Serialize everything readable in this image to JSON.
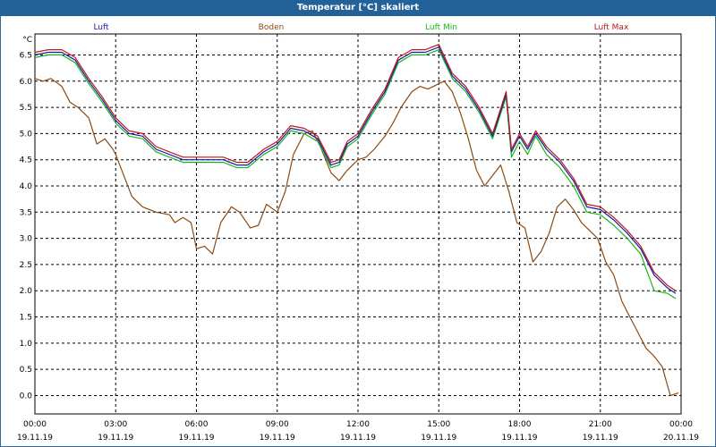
{
  "window": {
    "title": "Temperatur [°C] skaliert"
  },
  "chart_data": {
    "type": "line",
    "title": "Temperatur [°C] skaliert",
    "ylabel": "°C",
    "xlabel": "",
    "ylim": [
      -0.35,
      6.9
    ],
    "xlim": [
      0,
      24
    ],
    "grid": true,
    "yticks": [
      "0.0",
      "0.5",
      "1.0",
      "1.5",
      "2.0",
      "2.5",
      "3.0",
      "3.5",
      "4.0",
      "4.5",
      "5.0",
      "5.5",
      "6.0",
      "6.5"
    ],
    "xticks": [
      {
        "time": "00:00",
        "date": "19.11.19"
      },
      {
        "time": "03:00",
        "date": "19.11.19"
      },
      {
        "time": "06:00",
        "date": "19.11.19"
      },
      {
        "time": "09:00",
        "date": "19.11.19"
      },
      {
        "time": "12:00",
        "date": "19.11.19"
      },
      {
        "time": "15:00",
        "date": "19.11.19"
      },
      {
        "time": "18:00",
        "date": "19.11.19"
      },
      {
        "time": "21:00",
        "date": "19.11.19"
      },
      {
        "time": "00:00",
        "date": "20.11.19"
      }
    ],
    "legend_position": "top",
    "series": [
      {
        "name": "Luft",
        "color": "#1a1aa6",
        "x": [
          0,
          0.5,
          1,
          1.5,
          2,
          2.5,
          3,
          3.5,
          4,
          4.5,
          5,
          5.5,
          6,
          6.5,
          7,
          7.5,
          7.9,
          8.5,
          9,
          9.5,
          10,
          10.5,
          11,
          11.3,
          11.6,
          12,
          12.5,
          13,
          13.5,
          14,
          14.5,
          15,
          15.5,
          16,
          16.5,
          17,
          17.5,
          17.7,
          18,
          18.3,
          18.6,
          19,
          19.5,
          20,
          20.5,
          21,
          21.5,
          22,
          22.5,
          23,
          23.5,
          23.8
        ],
        "values": [
          6.5,
          6.55,
          6.55,
          6.4,
          6.0,
          5.65,
          5.25,
          5.0,
          4.95,
          4.7,
          4.6,
          4.5,
          4.5,
          4.5,
          4.5,
          4.4,
          4.4,
          4.65,
          4.8,
          5.1,
          5.05,
          4.9,
          4.4,
          4.45,
          4.8,
          4.95,
          5.4,
          5.8,
          6.4,
          6.55,
          6.55,
          6.65,
          6.1,
          5.85,
          5.45,
          4.95,
          5.75,
          4.65,
          4.95,
          4.7,
          5.0,
          4.7,
          4.45,
          4.1,
          3.6,
          3.55,
          3.35,
          3.1,
          2.8,
          2.3,
          2.05,
          1.95
        ]
      },
      {
        "name": "Boden",
        "color": "#8b4a13",
        "x": [
          0,
          0.3,
          0.6,
          1,
          1.3,
          1.6,
          2,
          2.3,
          2.6,
          2.9,
          3,
          3.3,
          3.6,
          4,
          4.5,
          5,
          5.2,
          5.5,
          5.8,
          6,
          6.3,
          6.6,
          6.9,
          7.3,
          7.6,
          8,
          8.3,
          8.6,
          9,
          9.3,
          9.6,
          10,
          10.3,
          10.6,
          11,
          11.3,
          11.6,
          12,
          12.3,
          12.6,
          13,
          13.3,
          13.6,
          14,
          14.3,
          14.6,
          15,
          15.2,
          15.5,
          15.8,
          16.1,
          16.4,
          16.7,
          17,
          17.3,
          17.6,
          17.9,
          18.2,
          18.5,
          18.8,
          19.1,
          19.4,
          19.7,
          20,
          20.3,
          20.6,
          20.9,
          21.2,
          21.5,
          21.8,
          22.1,
          22.4,
          22.7,
          23,
          23.3,
          23.6,
          23.9
        ],
        "values": [
          6.05,
          6.0,
          6.05,
          5.9,
          5.6,
          5.5,
          5.3,
          4.8,
          4.9,
          4.7,
          4.6,
          4.2,
          3.8,
          3.6,
          3.5,
          3.45,
          3.3,
          3.4,
          3.3,
          2.8,
          2.85,
          2.7,
          3.3,
          3.6,
          3.5,
          3.2,
          3.25,
          3.65,
          3.5,
          3.9,
          4.6,
          5.0,
          5.05,
          4.75,
          4.25,
          4.1,
          4.3,
          4.5,
          4.55,
          4.7,
          4.95,
          5.2,
          5.5,
          5.8,
          5.9,
          5.85,
          5.95,
          6.0,
          5.8,
          5.4,
          4.9,
          4.3,
          4.0,
          4.2,
          4.4,
          3.9,
          3.3,
          3.2,
          2.55,
          2.75,
          3.1,
          3.6,
          3.75,
          3.55,
          3.3,
          3.15,
          3.0,
          2.55,
          2.3,
          1.8,
          1.5,
          1.2,
          0.9,
          0.75,
          0.55,
          0.0,
          0.05
        ]
      },
      {
        "name": "Luft Min",
        "color": "#18b818",
        "x": [
          0,
          0.5,
          1,
          1.5,
          2,
          2.5,
          3,
          3.5,
          4,
          4.5,
          5,
          5.5,
          6,
          6.5,
          7,
          7.5,
          7.9,
          8.5,
          9,
          9.5,
          10,
          10.5,
          11,
          11.3,
          11.6,
          12,
          12.5,
          13,
          13.5,
          14,
          14.5,
          15,
          15.5,
          16,
          16.5,
          17,
          17.5,
          17.7,
          18,
          18.3,
          18.6,
          19,
          19.5,
          20,
          20.5,
          21,
          21.5,
          22,
          22.5,
          23,
          23.5,
          23.8
        ],
        "values": [
          6.45,
          6.5,
          6.5,
          6.35,
          5.95,
          5.6,
          5.2,
          4.95,
          4.9,
          4.65,
          4.55,
          4.45,
          4.45,
          4.45,
          4.45,
          4.35,
          4.35,
          4.6,
          4.75,
          5.05,
          5.0,
          4.85,
          4.35,
          4.4,
          4.75,
          4.9,
          5.35,
          5.75,
          6.35,
          6.5,
          6.5,
          6.6,
          6.05,
          5.8,
          5.4,
          4.9,
          5.7,
          4.55,
          4.85,
          4.6,
          4.95,
          4.6,
          4.35,
          4.0,
          3.5,
          3.45,
          3.25,
          3.0,
          2.7,
          2.0,
          1.95,
          1.85
        ]
      },
      {
        "name": "Luft Max",
        "color": "#c01818",
        "x": [
          0,
          0.5,
          1,
          1.5,
          2,
          2.5,
          3,
          3.5,
          4,
          4.5,
          5,
          5.5,
          6,
          6.5,
          7,
          7.5,
          7.9,
          8.5,
          9,
          9.5,
          10,
          10.5,
          11,
          11.3,
          11.6,
          12,
          12.5,
          13,
          13.5,
          14,
          14.5,
          15,
          15.5,
          16,
          16.5,
          17,
          17.5,
          17.7,
          18,
          18.3,
          18.6,
          19,
          19.5,
          20,
          20.5,
          21,
          21.5,
          22,
          22.5,
          23,
          23.5,
          23.8
        ],
        "values": [
          6.55,
          6.6,
          6.6,
          6.45,
          6.05,
          5.7,
          5.3,
          5.05,
          5.0,
          4.75,
          4.65,
          4.55,
          4.55,
          4.55,
          4.55,
          4.45,
          4.45,
          4.7,
          4.85,
          5.15,
          5.1,
          4.95,
          4.45,
          4.5,
          4.85,
          5.0,
          5.45,
          5.85,
          6.45,
          6.6,
          6.6,
          6.7,
          6.15,
          5.9,
          5.5,
          5.0,
          5.8,
          4.7,
          5.0,
          4.75,
          5.05,
          4.75,
          4.5,
          4.15,
          3.65,
          3.6,
          3.4,
          3.15,
          2.85,
          2.35,
          2.1,
          2.0
        ]
      }
    ]
  }
}
